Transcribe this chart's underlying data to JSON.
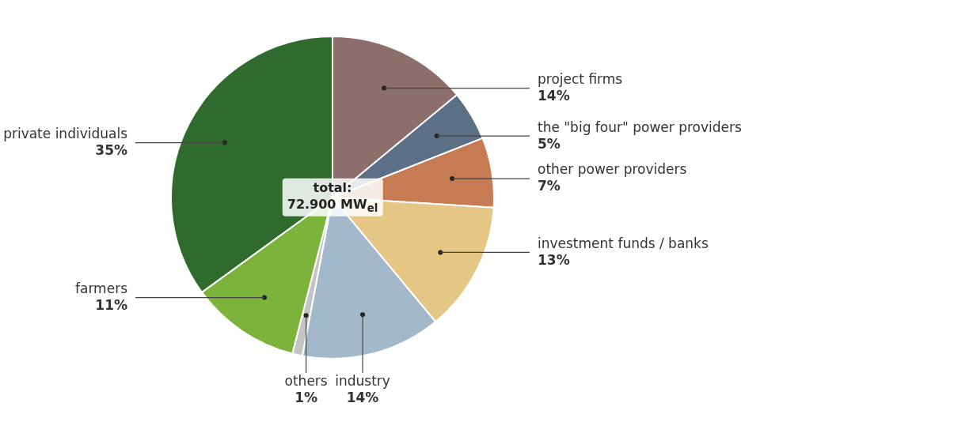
{
  "chart_data": {
    "type": "pie",
    "categories": [
      "project firms",
      "the \"big four\" power providers",
      "other power providers",
      "investment funds / banks",
      "industry",
      "others",
      "farmers",
      "private individuals"
    ],
    "values": [
      14,
      5,
      7,
      13,
      14,
      1,
      11,
      35
    ],
    "value_labels": [
      "14%",
      "5%",
      "7%",
      "13%",
      "14%",
      "1%",
      "11%",
      "35%"
    ],
    "colors": [
      "#8c6f6c",
      "#5b7087",
      "#c67b52",
      "#e6c684",
      "#a3b9cb",
      "#c4c4c4",
      "#7cb33b",
      "#2f6b2c"
    ],
    "annotations": [
      "total:",
      "72.900 MW$_{el}$"
    ]
  }
}
